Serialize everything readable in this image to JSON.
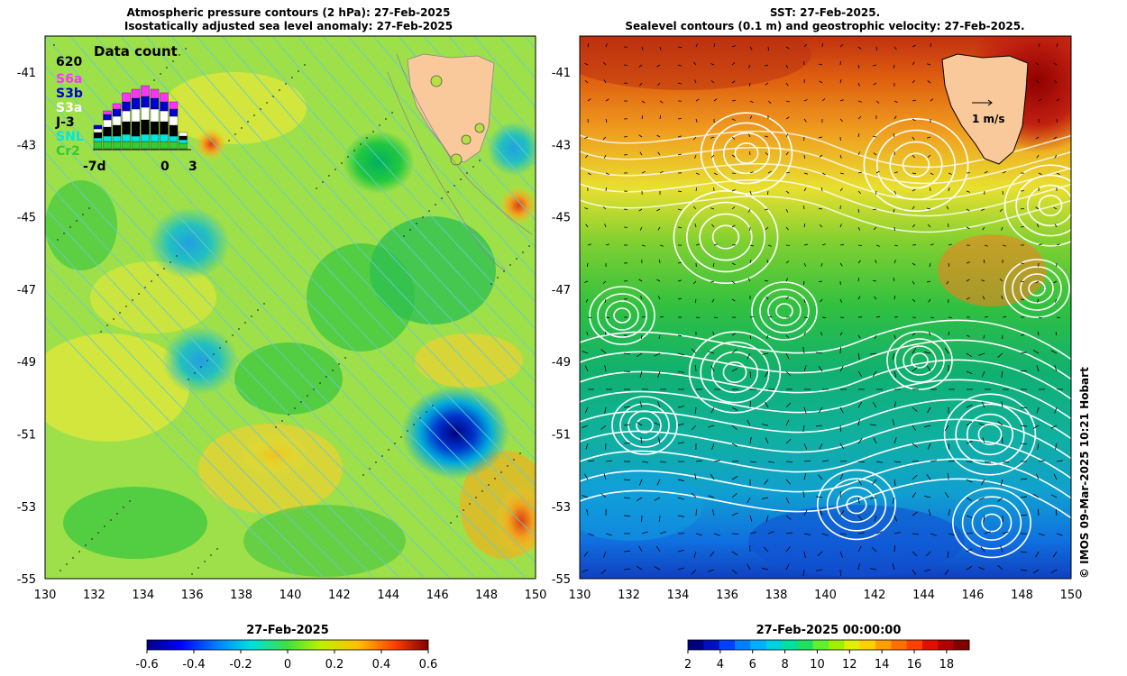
{
  "left_map": {
    "title_line1": "Atmospheric pressure contours (2 hPa): 27-Feb-2025",
    "title_line2": "Isostatically adjusted sea level anomaly: 27-Feb-2025",
    "inset": {
      "title": "Data count",
      "max_label": "620",
      "legend": [
        {
          "label": "S6a",
          "color": "#ff33ff"
        },
        {
          "label": "S3b",
          "color": "#0000cc"
        },
        {
          "label": "S3a",
          "color": "#ffffff"
        },
        {
          "label": "J-3",
          "color": "#000000"
        },
        {
          "label": "SNL",
          "color": "#00e5e5"
        },
        {
          "label": "Cr2",
          "color": "#33cc33"
        }
      ],
      "x_labels": [
        "-7d",
        "0",
        "3"
      ]
    },
    "colorbar": {
      "title": "27-Feb-2025",
      "ticks": [
        "-0.6",
        "-0.4",
        "-0.2",
        "0",
        "0.2",
        "0.4",
        "0.6"
      ]
    }
  },
  "right_map": {
    "title_line1": "SST: 27-Feb-2025.",
    "title_line2": "Sealevel contours (0.1 m) and geostrophic velocity: 27-Feb-2025.",
    "velocity_scale_label": "1 m/s",
    "colorbar": {
      "title": "27-Feb-2025 00:00:00",
      "ticks": [
        "2",
        "4",
        "6",
        "8",
        "10",
        "12",
        "14",
        "16",
        "18"
      ]
    }
  },
  "axes": {
    "lat_labels": [
      "-41",
      "-43",
      "-45",
      "-47",
      "-49",
      "-51",
      "-53",
      "-55"
    ],
    "lon_labels": [
      "130",
      "132",
      "134",
      "136",
      "138",
      "140",
      "142",
      "144",
      "146",
      "148",
      "150"
    ]
  },
  "credit": "© IMOS 09-Mar-2025 10:21 Hobart",
  "colors": {
    "land": "#f9c89b",
    "contour_pressure": "#66cccc",
    "contour_sealevel": "#ffffff"
  }
}
